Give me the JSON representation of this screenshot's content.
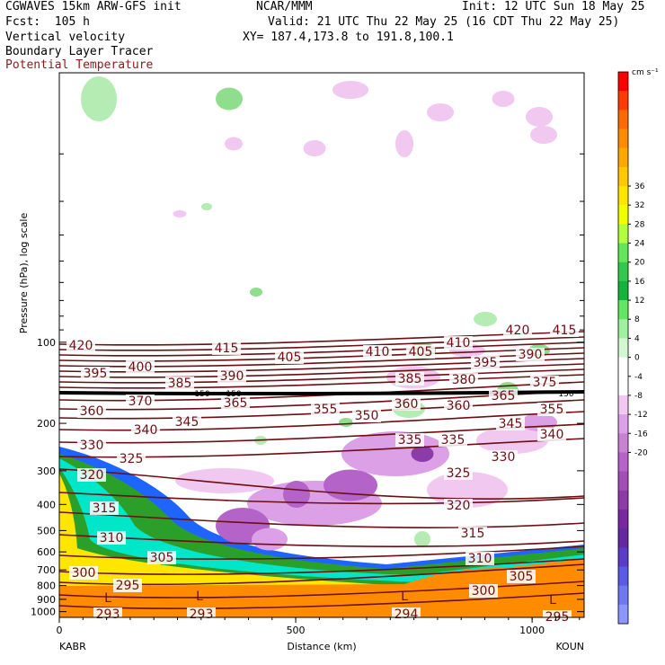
{
  "header": {
    "title": "CGWAVES 15km ARW-GFS init",
    "fcst": "Fcst:  105 h",
    "field1": "Vertical velocity",
    "field2": "Boundary Layer Tracer",
    "field3": "Potential Temperature",
    "org": "NCAR/MMM",
    "init": "Init: 12 UTC Sun 18 May 25",
    "valid": "Valid: 21 UTC Thu 22 May 25 (16 CDT Thu 22 May 25)",
    "xy": "XY= 187.4,173.8 to 191.8,100.1"
  },
  "colors": {
    "theta": "#6b0f14",
    "tracer": [
      "#ff8c00",
      "#ffe600",
      "#00e6c8",
      "#2aa02a",
      "#1e64ff"
    ],
    "updraft": [
      "#b4ecb4",
      "#8ede8e"
    ],
    "downdraft": [
      "#f0c8f0",
      "#dca0e6",
      "#b464c8",
      "#8c3ca8"
    ]
  },
  "chart_data": {
    "type": "heatmap",
    "title": "Vertical velocity",
    "xlabel": "Distance (km)",
    "ylabel": "Pressure (hPa), log scale",
    "xlim": [
      0,
      1110
    ],
    "ylim": [
      1050,
      10
    ],
    "y_scale": "log",
    "x_ticks": [
      "0",
      "500",
      "1000"
    ],
    "x_endpoints": [
      "KABR",
      "KOUN"
    ],
    "y_ticks": [
      "100",
      "200",
      "300",
      "400",
      "500",
      "600",
      "700",
      "800",
      "900",
      "1000"
    ],
    "colorbar": {
      "units": "cm s⁻¹",
      "labels": [
        "36",
        "32",
        "28",
        "24",
        "20",
        "16",
        "12",
        "8",
        "4",
        "0",
        "-4",
        "-8",
        "-12",
        "-16",
        "-20"
      ],
      "colors": [
        "#ff0000",
        "#ff3c00",
        "#ff6a00",
        "#ff8c00",
        "#ffa800",
        "#ffc800",
        "#ffe600",
        "#f0ff00",
        "#b4ff3c",
        "#64e65a",
        "#32c84b",
        "#14b43c",
        "#64e664",
        "#a0f0a0",
        "#d2f8d2",
        "#ffffff",
        "#ffffff",
        "#f0c8f0",
        "#dca0e6",
        "#c882d2",
        "#b464c8",
        "#a050b4",
        "#8c3ca8",
        "#7828a0",
        "#6428a0",
        "#5a3cc8",
        "#5a5ae6",
        "#6e78f0",
        "#8c96ff"
      ]
    },
    "theta_labels": [
      "420",
      "415",
      "415",
      "410",
      "410",
      "405",
      "405",
      "420",
      "395",
      "400",
      "390",
      "385",
      "380",
      "375",
      "395",
      "385",
      "390",
      "370",
      "365",
      "360",
      "350",
      "355",
      "360",
      "365",
      "355",
      "360",
      "345",
      "340",
      "345",
      "340",
      "335",
      "335",
      "330",
      "330",
      "325",
      "325",
      "320",
      "315",
      "320",
      "315",
      "310",
      "310",
      "305",
      "305",
      "300",
      "300",
      "295",
      "293",
      "293",
      "294",
      "295"
    ],
    "markers": {
      "low": "L",
      "tracer150": "150"
    }
  }
}
